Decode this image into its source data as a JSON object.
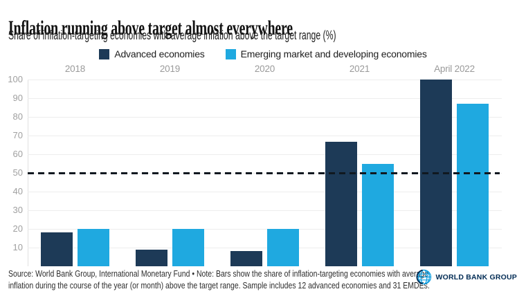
{
  "title": "Inflation running above target almost everywhere",
  "subtitle": "Share of inflation-targeting economies with average inflation above the target range (%)",
  "legend": {
    "advanced_label": "Advanced economies",
    "emerging_label": "Emerging market and developing economies"
  },
  "chart_data": {
    "type": "bar",
    "categories": [
      "2018",
      "2019",
      "2020",
      "2021",
      "April 2022"
    ],
    "series": [
      {
        "name": "Advanced economies",
        "color": "#1d3a57",
        "values": [
          18,
          9,
          8,
          66.7,
          100
        ]
      },
      {
        "name": "Emerging market and developing economies",
        "color": "#1fa9e0",
        "values": [
          20,
          20,
          20,
          55,
          87
        ]
      }
    ],
    "title": "Inflation running above target almost everywhere",
    "xlabel": "",
    "ylabel": "Share of inflation-targeting economies with average inflation above the target range (%)",
    "ylim": [
      0,
      100
    ],
    "yticks": [
      10,
      20,
      30,
      40,
      50,
      60,
      70,
      80,
      90,
      100
    ],
    "reference_line": 50,
    "grid": true,
    "legend_position": "top",
    "x_labels_position": "top"
  },
  "source": {
    "line1": "Source: World Bank Group, International Monetary Fund • Note: Bars show the share of inflation-targeting economies with average",
    "line2": "inflation during the course of the year (or month) above the target range. Sample includes 12 advanced economies and 31 EMDEs."
  },
  "logo": {
    "text": "WORLD BANK GROUP",
    "icon": "globe-icon"
  },
  "colors": {
    "advanced": "#1d3a57",
    "emerging": "#1fa9e0",
    "navy": "#002b54",
    "logo_blue": "#0c9de0",
    "reference_line": "#101820"
  }
}
